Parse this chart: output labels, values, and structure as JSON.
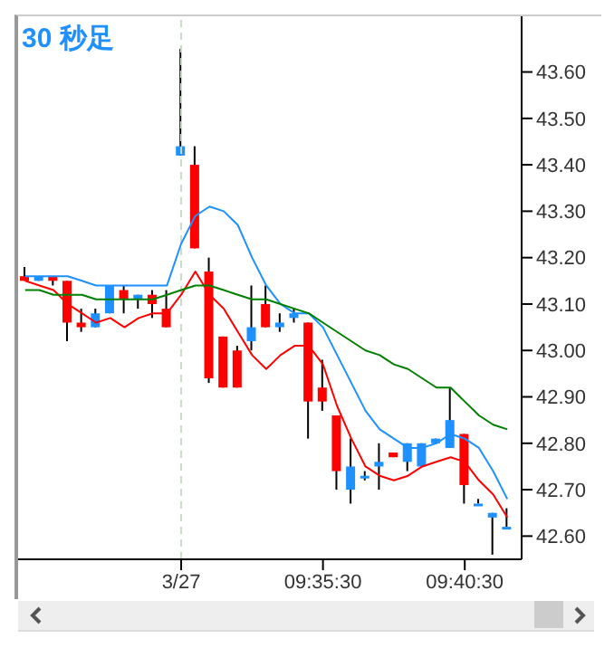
{
  "chart_data": {
    "type": "candlestick",
    "title": "30 秒足",
    "categories": [
      null,
      null,
      null,
      null,
      null,
      null,
      null,
      null,
      null,
      null,
      null,
      "3/27",
      null,
      null,
      null,
      null,
      null,
      null,
      null,
      null,
      null,
      "09:35:30",
      null,
      null,
      null,
      null,
      null,
      null,
      null,
      null,
      null,
      "09:40:30",
      null,
      null,
      null
    ],
    "ohlc": [
      [
        43.16,
        43.18,
        43.15,
        43.15
      ],
      [
        43.15,
        43.16,
        43.15,
        43.16
      ],
      [
        43.16,
        43.16,
        43.14,
        43.15
      ],
      [
        43.15,
        43.15,
        43.02,
        43.06
      ],
      [
        43.06,
        43.09,
        43.04,
        43.05
      ],
      [
        43.05,
        43.09,
        43.05,
        43.08
      ],
      [
        43.08,
        43.14,
        43.08,
        43.14
      ],
      [
        43.13,
        43.14,
        43.08,
        43.11
      ],
      [
        43.11,
        43.12,
        43.09,
        43.12
      ],
      [
        43.12,
        43.13,
        43.07,
        43.1
      ],
      [
        43.09,
        43.13,
        43.05,
        43.05
      ],
      [
        43.42,
        43.65,
        43.42,
        43.44
      ],
      [
        43.4,
        43.44,
        43.22,
        43.22
      ],
      [
        43.17,
        43.2,
        42.93,
        42.94
      ],
      [
        43.03,
        43.03,
        42.92,
        42.92
      ],
      [
        43.0,
        43.01,
        42.92,
        42.92
      ],
      [
        43.02,
        43.14,
        43.0,
        43.05
      ],
      [
        43.1,
        43.14,
        43.05,
        43.05
      ],
      [
        43.05,
        43.08,
        43.04,
        43.06
      ],
      [
        43.07,
        43.09,
        43.06,
        43.08
      ],
      [
        43.06,
        43.06,
        42.81,
        42.89
      ],
      [
        42.92,
        42.98,
        42.87,
        42.89
      ],
      [
        42.86,
        42.86,
        42.7,
        42.74
      ],
      [
        42.7,
        42.81,
        42.67,
        42.75
      ],
      [
        42.73,
        42.74,
        42.72,
        42.73
      ],
      [
        42.75,
        42.8,
        42.7,
        42.76
      ],
      [
        42.78,
        42.78,
        42.77,
        42.77
      ],
      [
        42.76,
        42.8,
        42.74,
        42.8
      ],
      [
        42.75,
        42.8,
        42.75,
        42.8
      ],
      [
        42.8,
        42.81,
        42.8,
        42.81
      ],
      [
        42.79,
        42.92,
        42.79,
        42.85
      ],
      [
        42.82,
        42.82,
        42.67,
        42.71
      ],
      [
        42.67,
        42.68,
        42.67,
        42.67
      ],
      [
        42.64,
        42.65,
        42.56,
        42.65
      ],
      [
        42.62,
        42.66,
        42.62,
        42.62
      ]
    ],
    "colors": [
      "#ff0000",
      "#1e90ff",
      "#ff0000",
      "#ff0000",
      "#ff0000",
      "#1e90ff",
      "#1e90ff",
      "#ff0000",
      "#1e90ff",
      "#ff0000",
      "#ff0000",
      "#1e90ff",
      "#ff0000",
      "#ff0000",
      "#ff0000",
      "#ff0000",
      "#1e90ff",
      "#ff0000",
      "#1e90ff",
      "#1e90ff",
      "#ff0000",
      "#ff0000",
      "#ff0000",
      "#1e90ff",
      "#1e90ff",
      "#1e90ff",
      "#ff0000",
      "#1e90ff",
      "#1e90ff",
      "#1e90ff",
      "#1e90ff",
      "#ff0000",
      "#1e90ff",
      "#1e90ff",
      "#1e90ff"
    ],
    "series": [
      {
        "type": "line",
        "color": "#1e90ff",
        "values": [
          43.16,
          43.16,
          43.16,
          43.16,
          43.15,
          43.14,
          43.14,
          43.14,
          43.14,
          43.14,
          43.14,
          43.23,
          43.29,
          43.31,
          43.3,
          43.27,
          43.2,
          43.14,
          43.1,
          43.08,
          43.08,
          43.05,
          42.99,
          42.93,
          42.87,
          42.83,
          42.81,
          42.79,
          42.79,
          42.8,
          42.82,
          42.81,
          42.79,
          42.74,
          42.68
        ]
      },
      {
        "type": "line",
        "color": "#ff0000",
        "values": [
          43.15,
          43.14,
          43.13,
          43.1,
          43.08,
          43.06,
          43.07,
          43.05,
          43.07,
          43.08,
          43.08,
          43.12,
          43.17,
          43.12,
          43.09,
          43.04,
          42.99,
          42.96,
          42.99,
          43.01,
          43.01,
          42.97,
          42.88,
          42.81,
          42.75,
          42.73,
          42.72,
          42.73,
          42.75,
          42.76,
          42.77,
          42.76,
          42.72,
          42.69,
          42.64
        ]
      },
      {
        "type": "line",
        "color": "#008000",
        "values": [
          43.13,
          43.13,
          43.12,
          43.12,
          43.12,
          43.11,
          43.11,
          43.11,
          43.11,
          43.11,
          43.12,
          43.13,
          43.14,
          43.14,
          43.13,
          43.12,
          43.11,
          43.11,
          43.1,
          43.09,
          43.08,
          43.06,
          43.04,
          43.02,
          43.0,
          42.99,
          42.97,
          42.96,
          42.94,
          42.92,
          42.92,
          42.89,
          42.86,
          42.84,
          42.83
        ]
      }
    ],
    "ylim": [
      42.55,
      43.72
    ],
    "yticks": [
      {
        "value": 42.6,
        "label": "42.60"
      },
      {
        "value": 42.7,
        "label": "42.70"
      },
      {
        "value": 42.8,
        "label": "42.80"
      },
      {
        "value": 42.9,
        "label": "42.90"
      },
      {
        "value": 43.0,
        "label": "43.00"
      },
      {
        "value": 43.1,
        "label": "43.10"
      },
      {
        "value": 43.2,
        "label": "43.20"
      },
      {
        "value": 43.3,
        "label": "43.30"
      },
      {
        "value": 43.4,
        "label": "43.40"
      },
      {
        "value": 43.5,
        "label": "43.50"
      },
      {
        "value": 43.6,
        "label": "43.60"
      }
    ],
    "ref_lines": [
      {
        "axis": "x",
        "value": "3/27",
        "color": "#c8dcc8",
        "line_style": "dashed"
      }
    ],
    "grid": false,
    "legend": false,
    "marker": "none",
    "line_style": "solid"
  }
}
